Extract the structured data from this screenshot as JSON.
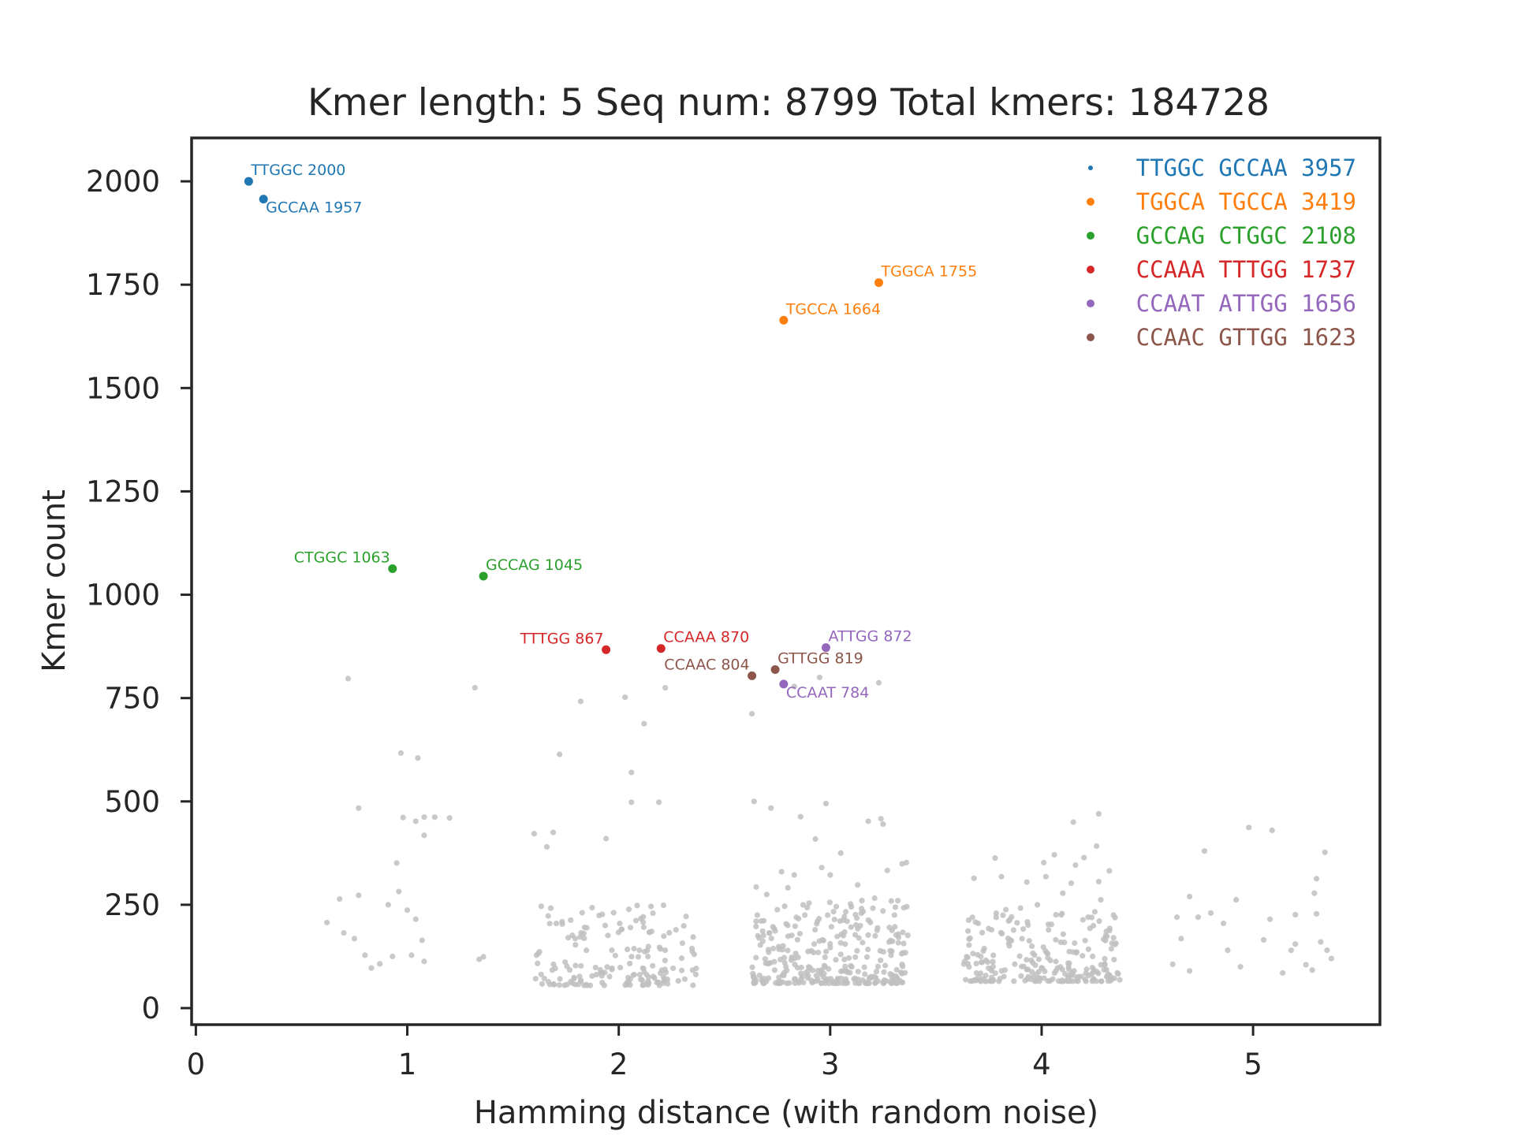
{
  "chart_data": {
    "type": "scatter",
    "title": "Kmer length: 5 Seq num: 8799 Total kmers: 184728",
    "xlabel": "Hamming distance (with random noise)",
    "ylabel": "Kmer count",
    "xlim": [
      -0.02,
      5.6
    ],
    "ylim": [
      -40,
      2105
    ],
    "xticks": [
      0,
      1,
      2,
      3,
      4,
      5
    ],
    "yticks": [
      0,
      250,
      500,
      750,
      1000,
      1250,
      1500,
      1750,
      2000
    ],
    "grid": false,
    "legend_position": "top-right",
    "background_color": "#bfbfbf",
    "highlighted": [
      {
        "label": "TTGGC 2000",
        "x": 0.25,
        "y": 2000,
        "color": "#1f77b4"
      },
      {
        "label": "GCCAA 1957",
        "x": 0.32,
        "y": 1957,
        "color": "#1f77b4"
      },
      {
        "label": "TGGCA 1755",
        "x": 3.23,
        "y": 1755,
        "color": "#ff7f0e"
      },
      {
        "label": "TGCCA 1664",
        "x": 2.78,
        "y": 1664,
        "color": "#ff7f0e"
      },
      {
        "label": "CTGGC 1063",
        "x": 0.93,
        "y": 1063,
        "color": "#2ca02c"
      },
      {
        "label": "GCCAG 1045",
        "x": 1.36,
        "y": 1045,
        "color": "#2ca02c"
      },
      {
        "label": "TTTGG 867",
        "x": 1.94,
        "y": 867,
        "color": "#d62728"
      },
      {
        "label": "CCAAA 870",
        "x": 2.2,
        "y": 870,
        "color": "#d62728"
      },
      {
        "label": "ATTGG 872",
        "x": 2.98,
        "y": 872,
        "color": "#9467bd"
      },
      {
        "label": "CCAAT 784",
        "x": 2.78,
        "y": 784,
        "color": "#9467bd"
      },
      {
        "label": "CCAAC 804",
        "x": 2.63,
        "y": 804,
        "color": "#8c564b"
      },
      {
        "label": "GTTGG 819",
        "x": 2.74,
        "y": 819,
        "color": "#8c564b"
      }
    ],
    "legend": [
      {
        "text": "TTGGC GCCAA 3957",
        "color": "#1f77b4"
      },
      {
        "text": "TGGCA TGCCA 3419",
        "color": "#ff7f0e"
      },
      {
        "text": "GCCAG CTGGC 2108",
        "color": "#2ca02c"
      },
      {
        "text": "CCAAA TTTGG 1737",
        "color": "#d62728"
      },
      {
        "text": "CCAAT ATTGG 1656",
        "color": "#9467bd"
      },
      {
        "text": "CCAAC GTTGG 1623",
        "color": "#8c564b"
      }
    ],
    "background_points": [
      [
        0.72,
        797
      ],
      [
        1.32,
        775
      ],
      [
        1.82,
        742
      ],
      [
        2.03,
        752
      ],
      [
        2.22,
        775
      ],
      [
        2.63,
        712
      ],
      [
        2.12,
        688
      ],
      [
        2.95,
        800
      ],
      [
        3.23,
        787
      ],
      [
        2.83,
        778
      ],
      [
        0.97,
        617
      ],
      [
        1.05,
        605
      ],
      [
        1.72,
        614
      ],
      [
        2.06,
        570
      ],
      [
        0.77,
        484
      ],
      [
        0.98,
        461
      ],
      [
        1.04,
        452
      ],
      [
        1.08,
        462
      ],
      [
        1.13,
        462
      ],
      [
        1.2,
        460
      ],
      [
        1.08,
        418
      ],
      [
        2.06,
        498
      ],
      [
        2.19,
        498
      ],
      [
        2.64,
        500
      ],
      [
        2.72,
        484
      ],
      [
        2.86,
        463
      ],
      [
        2.98,
        495
      ],
      [
        3.18,
        452
      ],
      [
        3.24,
        458
      ],
      [
        3.25,
        445
      ],
      [
        4.15,
        450
      ],
      [
        4.27,
        470
      ],
      [
        2.93,
        409
      ],
      [
        1.6,
        422
      ],
      [
        1.66,
        390
      ],
      [
        1.69,
        425
      ],
      [
        1.94,
        410
      ],
      [
        4.26,
        392
      ],
      [
        4.7,
        270
      ],
      [
        4.77,
        380
      ],
      [
        4.98,
        437
      ],
      [
        5.09,
        430
      ],
      [
        5.34,
        377
      ],
      [
        5.3,
        313
      ],
      [
        5.29,
        278
      ],
      [
        0.62,
        207
      ],
      [
        0.68,
        264
      ],
      [
        0.7,
        182
      ],
      [
        0.75,
        168
      ],
      [
        0.77,
        273
      ],
      [
        0.8,
        128
      ],
      [
        0.83,
        97
      ],
      [
        0.87,
        107
      ],
      [
        0.91,
        250
      ],
      [
        0.93,
        125
      ],
      [
        0.95,
        351
      ],
      [
        0.96,
        282
      ],
      [
        1.0,
        237
      ],
      [
        1.02,
        128
      ],
      [
        1.04,
        215
      ],
      [
        1.07,
        164
      ],
      [
        1.08,
        113
      ],
      [
        1.36,
        124
      ],
      [
        1.34,
        118
      ],
      [
        4.64,
        220
      ],
      [
        4.66,
        168
      ],
      [
        4.7,
        90
      ],
      [
        4.8,
        230
      ],
      [
        4.86,
        205
      ],
      [
        4.88,
        140
      ],
      [
        4.92,
        262
      ],
      [
        5.05,
        165
      ],
      [
        5.08,
        215
      ],
      [
        5.14,
        85
      ],
      [
        5.2,
        155
      ],
      [
        5.25,
        105
      ],
      [
        5.3,
        228
      ],
      [
        5.32,
        160
      ],
      [
        5.35,
        140
      ],
      [
        5.37,
        120
      ],
      [
        4.62,
        106
      ],
      [
        4.94,
        100
      ],
      [
        5.18,
        140
      ],
      [
        5.28,
        92
      ],
      [
        4.74,
        220
      ],
      [
        5.2,
        226
      ],
      [
        2.77,
        330
      ],
      [
        2.96,
        340
      ],
      [
        3.05,
        375
      ],
      [
        3.13,
        298
      ],
      [
        3.27,
        333
      ],
      [
        3.34,
        349
      ],
      [
        2.65,
        293
      ],
      [
        2.8,
        291
      ],
      [
        2.83,
        322
      ],
      [
        3.0,
        322
      ],
      [
        3.21,
        266
      ],
      [
        3.36,
        352
      ],
      [
        4.01,
        352
      ],
      [
        4.16,
        346
      ],
      [
        4.27,
        306
      ],
      [
        3.68,
        314
      ],
      [
        3.78,
        363
      ],
      [
        3.81,
        318
      ],
      [
        4.06,
        371
      ],
      [
        4.14,
        302
      ],
      [
        4.32,
        332
      ],
      [
        3.93,
        305
      ],
      [
        3.98,
        250
      ],
      [
        4.2,
        364
      ],
      [
        4.1,
        278
      ],
      [
        4.02,
        318
      ],
      [
        3.9,
        242
      ],
      [
        3.85,
        214
      ],
      [
        3.7,
        205
      ],
      [
        4.28,
        262
      ],
      [
        4.22,
        220
      ],
      [
        4.34,
        225
      ],
      [
        2.9,
        254
      ],
      [
        3.1,
        245
      ],
      [
        2.65,
        210
      ],
      [
        2.75,
        238
      ],
      [
        2.88,
        225
      ],
      [
        3.08,
        210
      ],
      [
        3.15,
        260
      ],
      [
        3.25,
        235
      ],
      [
        3.32,
        260
      ],
      [
        2.7,
        275
      ],
      [
        3.28,
        195
      ]
    ],
    "dense_clusters": [
      {
        "x": [
          1.6,
          2.37
        ],
        "y": [
          55,
          250
        ],
        "count": 170
      },
      {
        "x": [
          2.63,
          3.37
        ],
        "y": [
          60,
          260
        ],
        "count": 300
      },
      {
        "x": [
          3.63,
          4.37
        ],
        "y": [
          65,
          240
        ],
        "count": 230
      }
    ]
  }
}
